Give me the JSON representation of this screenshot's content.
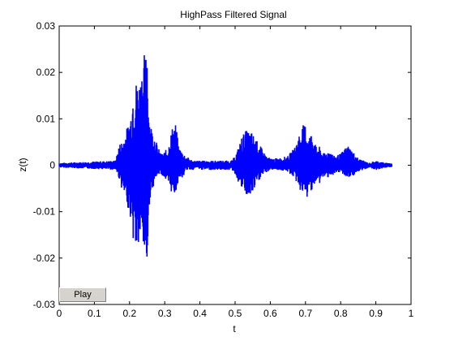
{
  "chart_data": {
    "type": "line",
    "title": "HighPass Filtered Signal",
    "xlabel": "t",
    "ylabel": "z(t)",
    "xlim": [
      0,
      1
    ],
    "ylim": [
      -0.03,
      0.03
    ],
    "xticks": [
      0,
      0.1,
      0.2,
      0.3,
      0.4,
      0.5,
      0.6,
      0.7,
      0.8,
      0.9,
      1
    ],
    "xtick_labels": [
      "0",
      "0.1",
      "0.2",
      "0.3",
      "0.4",
      "0.5",
      "0.6",
      "0.7",
      "0.8",
      "0.9",
      "1"
    ],
    "yticks": [
      0.03,
      0.02,
      0.01,
      0,
      -0.01,
      -0.02,
      -0.03
    ],
    "ytick_labels": [
      "0.03",
      "0.02",
      "0.01",
      "0",
      "-0.01",
      "-0.02",
      "-0.03"
    ],
    "grid": false,
    "line_color": "#0000ff",
    "series": [
      {
        "x": [
          0.0,
          0.16,
          0.17,
          0.18,
          0.19,
          0.2,
          0.205,
          0.21,
          0.22,
          0.23,
          0.24,
          0.245,
          0.25,
          0.255,
          0.26,
          0.27,
          0.28,
          0.29,
          0.3,
          0.31,
          0.32,
          0.33,
          0.34,
          0.35,
          0.36,
          0.37,
          0.38,
          0.39,
          0.4,
          0.45,
          0.49,
          0.5,
          0.51,
          0.52,
          0.53,
          0.54,
          0.55,
          0.56,
          0.57,
          0.58,
          0.59,
          0.6,
          0.62,
          0.65,
          0.67,
          0.68,
          0.69,
          0.7,
          0.71,
          0.72,
          0.73,
          0.74,
          0.75,
          0.76,
          0.77,
          0.78,
          0.8,
          0.82,
          0.85,
          0.88,
          0.9,
          0.93,
          0.945
        ],
        "upper": [
          0.0005,
          0.001,
          0.0045,
          0.0055,
          0.0075,
          0.01,
          0.0125,
          0.018,
          0.0185,
          0.019,
          0.025,
          0.023,
          0.029,
          0.012,
          0.009,
          0.007,
          0.004,
          0.0025,
          0.003,
          0.004,
          0.008,
          0.0095,
          0.004,
          0.003,
          0.002,
          0.0015,
          0.001,
          0.001,
          0.001,
          0.001,
          0.001,
          0.002,
          0.004,
          0.0065,
          0.0075,
          0.0075,
          0.007,
          0.0055,
          0.0045,
          0.003,
          0.002,
          0.0015,
          0.0015,
          0.002,
          0.004,
          0.0065,
          0.0085,
          0.009,
          0.0065,
          0.0075,
          0.004,
          0.004,
          0.0025,
          0.003,
          0.0035,
          0.002,
          0.0025,
          0.0045,
          0.0015,
          0.0005,
          0.001,
          0.0005,
          0.0005
        ],
        "lower": [
          -0.0005,
          -0.001,
          -0.003,
          -0.006,
          -0.008,
          -0.0105,
          -0.0135,
          -0.0165,
          -0.0195,
          -0.0165,
          -0.0195,
          -0.02,
          -0.0235,
          -0.009,
          -0.006,
          -0.004,
          -0.002,
          -0.002,
          -0.003,
          -0.005,
          -0.006,
          -0.0065,
          -0.0025,
          -0.003,
          -0.001,
          -0.001,
          -0.001,
          -0.0005,
          -0.001,
          -0.001,
          -0.001,
          -0.002,
          -0.004,
          -0.0055,
          -0.0065,
          -0.0075,
          -0.006,
          -0.0045,
          -0.003,
          -0.002,
          -0.0015,
          -0.001,
          -0.001,
          -0.0015,
          -0.003,
          -0.005,
          -0.006,
          -0.008,
          -0.006,
          -0.005,
          -0.004,
          -0.004,
          -0.0025,
          -0.003,
          -0.002,
          -0.0025,
          -0.0015,
          -0.003,
          -0.0015,
          -0.0005,
          -0.001,
          -0.0005,
          -0.0005
        ]
      }
    ]
  },
  "controls": {
    "play_label": "Play"
  }
}
